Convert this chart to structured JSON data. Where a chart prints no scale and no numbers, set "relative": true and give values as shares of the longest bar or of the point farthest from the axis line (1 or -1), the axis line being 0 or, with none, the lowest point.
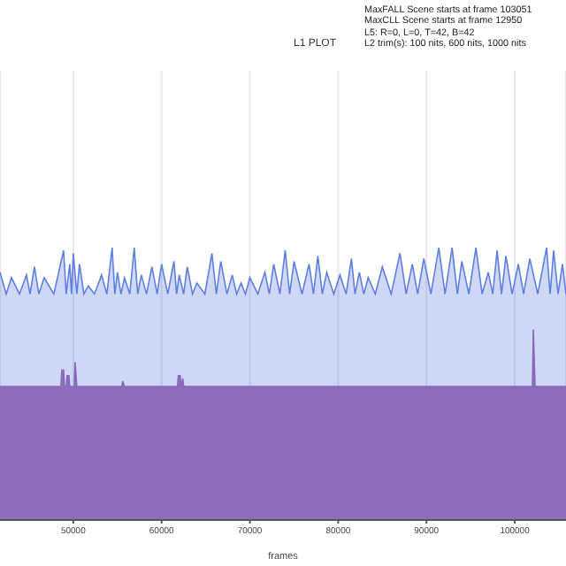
{
  "chart_data": {
    "type": "area",
    "title": "L1 PLOT",
    "xlabel": "frames",
    "relative": true,
    "xlim": [
      41700,
      105800
    ],
    "xticks": [
      50000,
      60000,
      70000,
      80000,
      90000,
      100000
    ],
    "grid": "x",
    "annotations": [
      "MaxFALL Scene starts at frame 103051",
      "MaxCLL Scene starts at frame 12950",
      "L5: R=0, L=0, T=42, B=42",
      "L2 trim(s): 100 nits, 600 nits, 1000 nits"
    ],
    "series": [
      {
        "color": "#5f7fe3",
        "x": [
          41700,
          42400,
          43000,
          43900,
          44700,
          45100,
          45600,
          46100,
          46700,
          47800,
          48900,
          49200,
          49600,
          49800,
          50000,
          50400,
          50700,
          51200,
          51700,
          52400,
          53200,
          53800,
          54400,
          54700,
          55000,
          55400,
          55800,
          56400,
          56900,
          57300,
          57700,
          58300,
          58900,
          59500,
          60000,
          60700,
          61400,
          61700,
          62000,
          62500,
          62900,
          63500,
          64000,
          64900,
          65700,
          66200,
          66700,
          67400,
          68000,
          68500,
          69000,
          69500,
          70000,
          70900,
          71700,
          72200,
          72700,
          73400,
          74000,
          74500,
          75000,
          75900,
          76700,
          77200,
          77700,
          78200,
          78700,
          79500,
          80200,
          80900,
          81500,
          81900,
          82400,
          82900,
          83400,
          84200,
          85000,
          86000,
          87000,
          87700,
          88400,
          89000,
          89700,
          90500,
          91400,
          92100,
          92900,
          93500,
          94000,
          94800,
          95600,
          96300,
          97000,
          97500,
          98000,
          98500,
          99000,
          99700,
          100400,
          101000,
          101700,
          102600,
          103600,
          104000,
          104400,
          104900,
          105400,
          105800
        ],
        "values": [
          0.91,
          0.83,
          0.89,
          0.83,
          0.9,
          0.83,
          0.93,
          0.83,
          0.89,
          0.83,
          0.99,
          0.83,
          0.94,
          0.83,
          0.98,
          0.83,
          0.94,
          0.83,
          0.86,
          0.83,
          0.9,
          0.83,
          1.0,
          0.83,
          0.91,
          0.83,
          0.89,
          0.83,
          1.0,
          0.83,
          0.9,
          0.83,
          0.93,
          0.83,
          0.94,
          0.83,
          0.95,
          0.83,
          0.9,
          0.83,
          0.93,
          0.83,
          0.87,
          0.83,
          0.98,
          0.83,
          0.95,
          0.83,
          0.9,
          0.83,
          0.87,
          0.83,
          0.89,
          0.83,
          0.91,
          0.83,
          0.94,
          0.83,
          0.99,
          0.83,
          0.95,
          0.83,
          0.94,
          0.83,
          0.97,
          0.83,
          0.91,
          0.83,
          0.9,
          0.83,
          0.96,
          0.83,
          0.91,
          0.83,
          0.89,
          0.83,
          0.93,
          0.83,
          0.98,
          0.83,
          0.94,
          0.83,
          0.96,
          0.83,
          1.0,
          0.83,
          1.0,
          0.83,
          0.95,
          0.83,
          1.0,
          0.83,
          0.91,
          0.83,
          0.99,
          0.83,
          0.97,
          0.83,
          0.94,
          0.83,
          0.96,
          0.83,
          1.0,
          0.83,
          0.99,
          0.83,
          0.94,
          0.83
        ]
      },
      {
        "color": "#8a68b8",
        "x": [
          41700,
          48600,
          48700,
          48900,
          49000,
          49200,
          49300,
          49500,
          49600,
          50100,
          50200,
          50400,
          55500,
          55600,
          55800,
          61800,
          61900,
          62100,
          62200,
          62400,
          62500,
          102000,
          102100,
          102300,
          105800
        ],
        "values": [
          0.49,
          0.49,
          0.55,
          0.55,
          0.49,
          0.49,
          0.53,
          0.53,
          0.49,
          0.49,
          0.58,
          0.49,
          0.49,
          0.51,
          0.49,
          0.49,
          0.53,
          0.53,
          0.49,
          0.52,
          0.49,
          0.49,
          0.7,
          0.49,
          0.49
        ]
      }
    ]
  }
}
